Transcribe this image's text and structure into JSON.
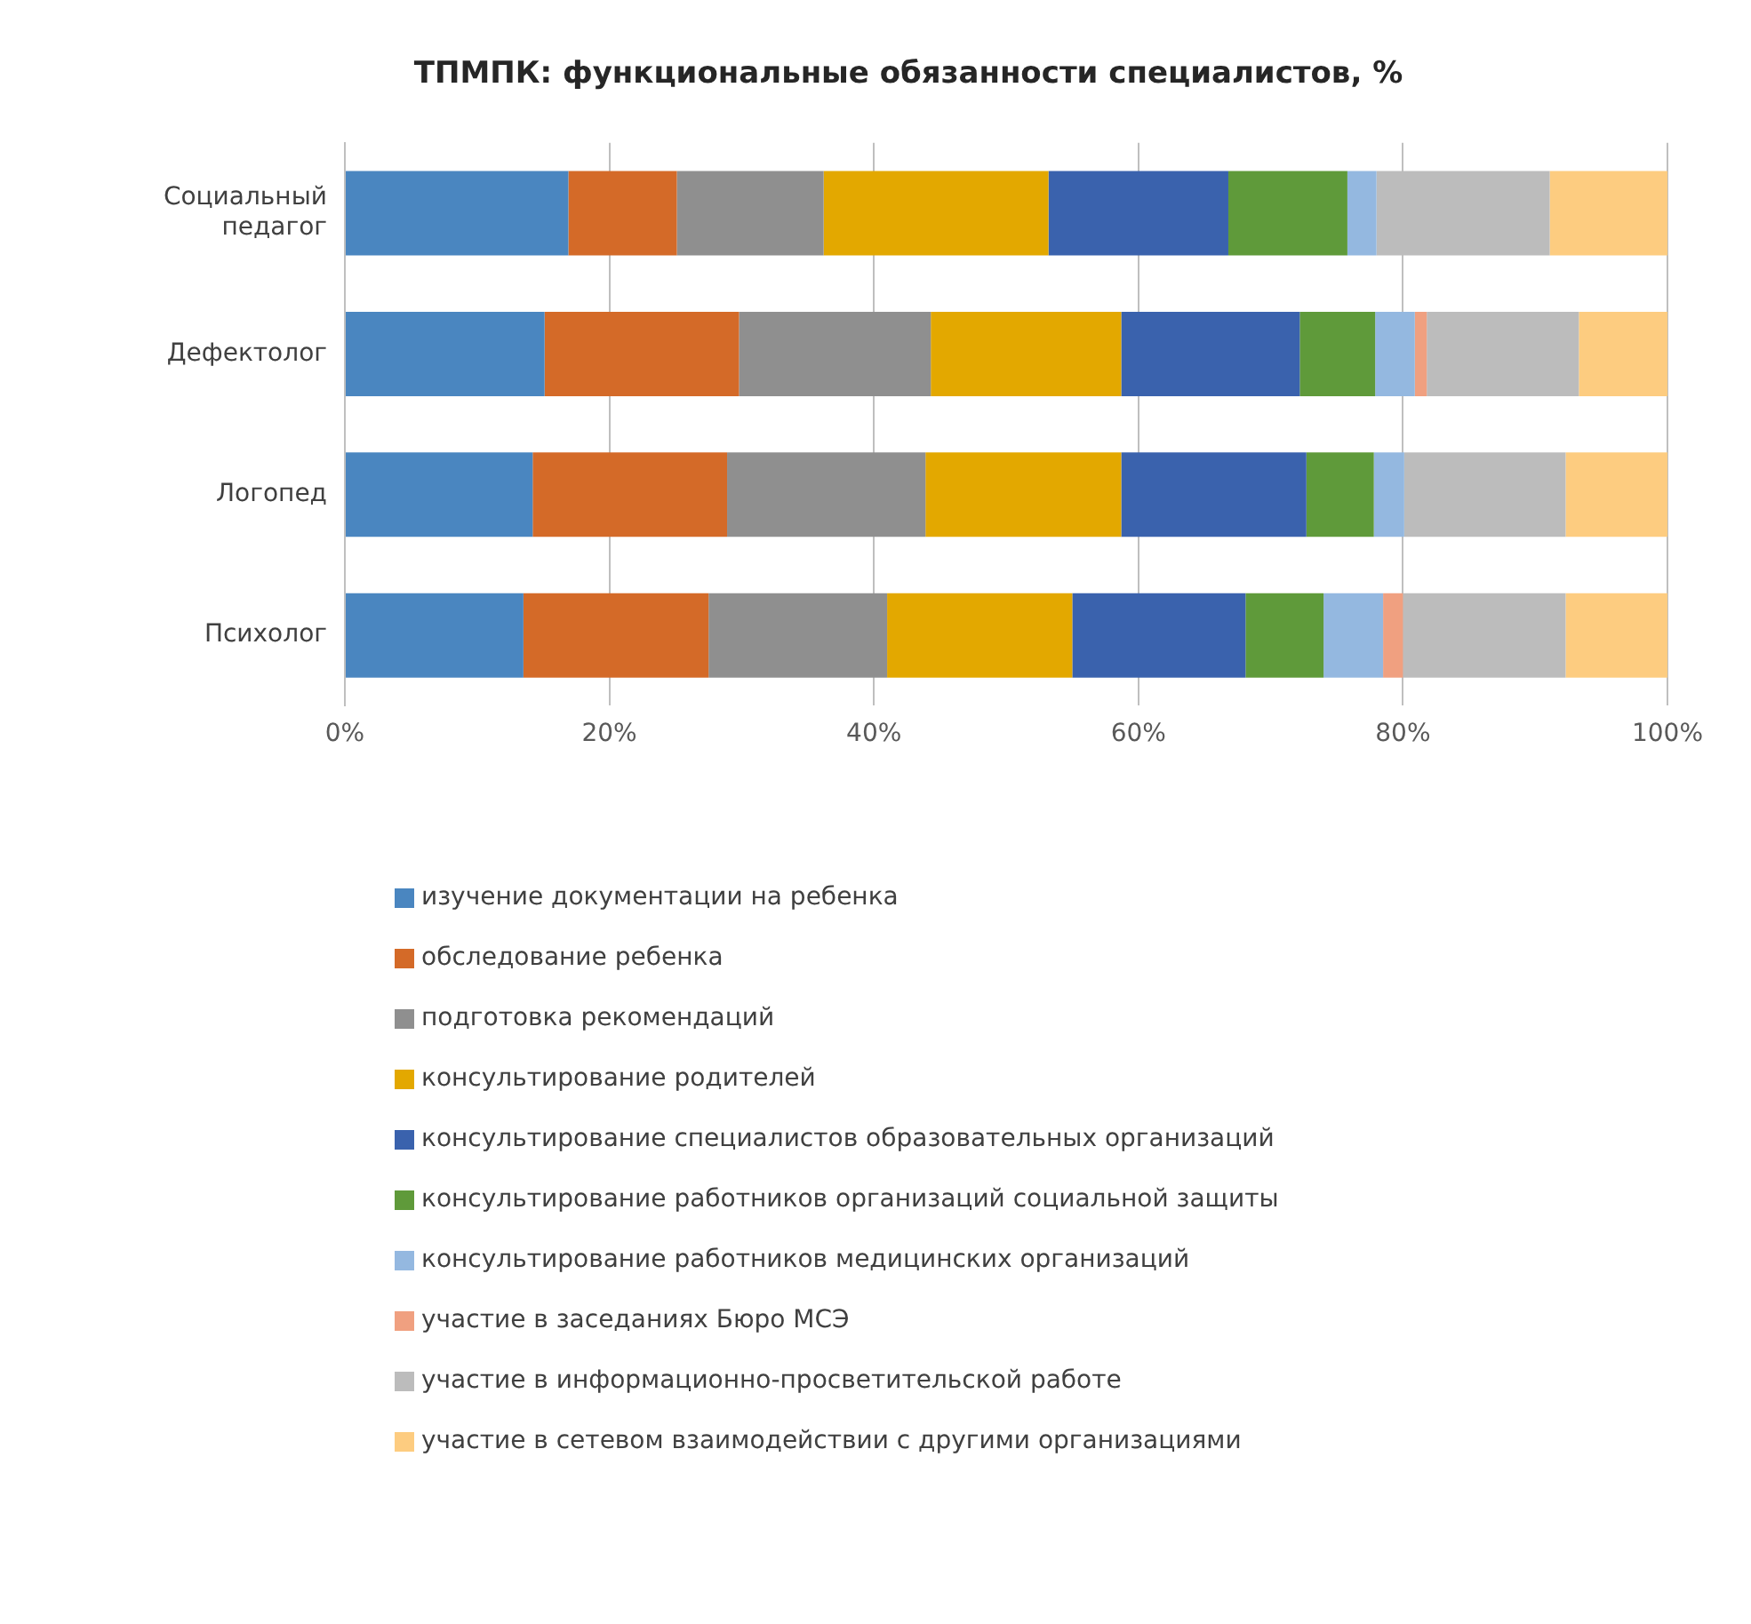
{
  "chart_data": {
    "type": "bar",
    "title": "ТПМПК: функциональные обязанности специалистов, %",
    "orientation": "horizontal",
    "stacked": true,
    "categories": [
      "Социальный педагог",
      "Дефектолог",
      "Логопед",
      "Психолог"
    ],
    "series": [
      {
        "name": "изучение документации на ребенка",
        "color": "#4a86c0",
        "values": [
          16.9,
          15.1,
          14.2,
          13.5
        ]
      },
      {
        "name": "обследование ребенка",
        "color": "#d46a28",
        "values": [
          8.2,
          14.7,
          14.7,
          14.0
        ]
      },
      {
        "name": "подготовка рекомендаций",
        "color": "#8f8f8f",
        "values": [
          11.1,
          14.5,
          15.0,
          13.5
        ]
      },
      {
        "name": "консультирование родителей",
        "color": "#e3a800",
        "values": [
          17.0,
          14.4,
          14.8,
          14.0
        ]
      },
      {
        "name": "консультирование специалистов образовательных организаций",
        "color": "#3a62ad",
        "values": [
          13.6,
          13.5,
          14.0,
          13.1
        ]
      },
      {
        "name": "консультирование работников организаций социальной защиты",
        "color": "#5f9a3a",
        "values": [
          9.0,
          5.7,
          5.1,
          5.9
        ]
      },
      {
        "name": "консультирование работников медицинских организаций",
        "color": "#94b8e0",
        "values": [
          2.2,
          3.0,
          2.3,
          4.5
        ]
      },
      {
        "name": "участие в заседаниях Бюро МСЭ",
        "color": "#f0a080",
        "values": [
          0,
          0.9,
          0,
          1.5
        ]
      },
      {
        "name": "участие в информационно-просветительской работе",
        "color": "#bcbcbc",
        "values": [
          13.1,
          11.5,
          12.2,
          12.3
        ]
      },
      {
        "name": "участие в сетевом взаимодействии с другими организациями",
        "color": "#fdcc80",
        "values": [
          8.9,
          6.7,
          7.7,
          7.7
        ]
      }
    ],
    "xlim": [
      0,
      100
    ],
    "xticks": [
      {
        "value": 0,
        "label": "0%"
      },
      {
        "value": 20,
        "label": "20%"
      },
      {
        "value": 40,
        "label": "40%"
      },
      {
        "value": 60,
        "label": "60%"
      },
      {
        "value": 80,
        "label": "80%"
      },
      {
        "value": 100,
        "label": "100%"
      }
    ],
    "grid": "x",
    "legend": "bottom"
  }
}
